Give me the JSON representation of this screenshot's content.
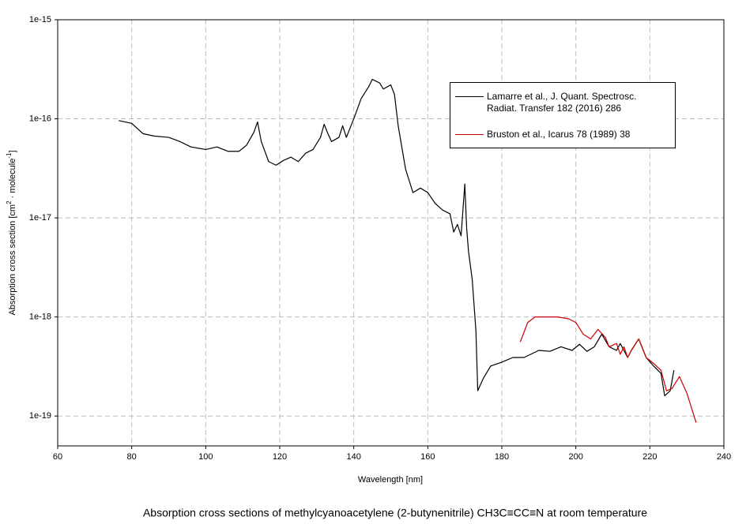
{
  "chart_data": {
    "type": "line",
    "caption": "Absorption cross sections of methylcyanoacetylene (2-butynenitrile) CH3C≡CC≡N at room temperature",
    "x_label": "Wavelength [nm]",
    "y_label": [
      "Absorption cross section [cm",
      "2",
      " · molecule",
      "-1",
      "]"
    ],
    "xlim": [
      60,
      240
    ],
    "xticks": [
      60,
      80,
      100,
      120,
      140,
      160,
      180,
      200,
      220,
      240
    ],
    "ylim": [
      5e-20,
      1e-15
    ],
    "yticks": [
      1e-19,
      1e-18,
      1e-17,
      1e-16,
      1e-15
    ],
    "log_y": true,
    "grid": true,
    "series": [
      {
        "name": "Lamarre et al., J. Quant. Spectrosc. Radiat. Transfer 182 (2016) 286",
        "color": "#000000",
        "x": [
          76.5,
          80,
          83,
          86,
          90,
          93,
          96,
          100,
          103,
          106,
          109,
          111,
          113,
          114,
          115,
          117,
          119,
          121,
          123,
          125,
          127,
          129,
          131,
          132,
          133,
          134,
          136,
          137,
          138,
          140,
          142,
          144,
          145,
          147,
          148,
          150,
          151,
          152,
          154,
          156,
          158,
          160,
          162,
          164,
          166,
          167,
          168,
          169,
          170,
          170.5,
          171,
          172,
          173,
          173.5,
          175,
          177,
          180,
          183,
          186,
          190,
          193,
          196,
          199,
          201,
          203,
          205,
          207,
          209,
          211,
          212,
          214,
          215,
          217,
          219,
          221,
          223,
          224,
          225.5,
          226.5
        ],
        "values": [
          9.6e-17,
          9e-17,
          7.1e-17,
          6.7e-17,
          6.5e-17,
          5.9e-17,
          5.2e-17,
          4.9e-17,
          5.2e-17,
          4.7e-17,
          4.7e-17,
          5.4e-17,
          7.3e-17,
          9.3e-17,
          5.9e-17,
          3.7e-17,
          3.4e-17,
          3.8e-17,
          4.1e-17,
          3.7e-17,
          4.5e-17,
          4.9e-17,
          6.5e-17,
          8.8e-17,
          7.1e-17,
          5.9e-17,
          6.5e-17,
          8.5e-17,
          6.5e-17,
          1e-16,
          1.6e-16,
          2.1e-16,
          2.5e-16,
          2.3e-16,
          2e-16,
          2.2e-16,
          1.76e-16,
          8.5e-17,
          3.1e-17,
          1.8e-17,
          2e-17,
          1.8e-17,
          1.4e-17,
          1.2e-17,
          1.1e-17,
          7.2e-18,
          8.6e-18,
          6.6e-18,
          2.2e-17,
          7.9e-18,
          4.6e-18,
          2.4e-18,
          7.3e-19,
          1.8e-19,
          2.4e-19,
          3.2e-19,
          3.5e-19,
          3.9e-19,
          3.9e-19,
          4.6e-19,
          4.5e-19,
          5e-19,
          4.6e-19,
          5.3e-19,
          4.5e-19,
          5e-19,
          6.7e-19,
          5e-19,
          4.6e-19,
          5.4e-19,
          3.9e-19,
          4.6e-19,
          6e-19,
          3.9e-19,
          3.2e-19,
          2.7e-19,
          1.6e-19,
          1.8e-19,
          2.9e-19
        ]
      },
      {
        "name": "Bruston et al., Icarus 78 (1989) 38",
        "color": "#cc0000",
        "x": [
          185,
          187,
          189,
          192,
          195,
          198,
          200,
          202,
          204,
          206,
          208,
          209,
          211,
          212,
          213,
          214,
          215,
          217,
          219,
          221,
          223,
          224.5,
          226,
          228,
          230,
          232.5
        ],
        "values": [
          5.6e-19,
          8.8e-19,
          1e-18,
          1e-18,
          1e-18,
          9.6e-19,
          8.8e-19,
          6.7e-19,
          6e-19,
          7.5e-19,
          6.2e-19,
          5e-19,
          5.4e-19,
          4.2e-19,
          5e-19,
          3.9e-19,
          4.6e-19,
          6e-19,
          3.9e-19,
          3.4e-19,
          2.9e-19,
          1.8e-19,
          1.9e-19,
          2.5e-19,
          1.7e-19,
          8.6e-20
        ]
      }
    ]
  }
}
